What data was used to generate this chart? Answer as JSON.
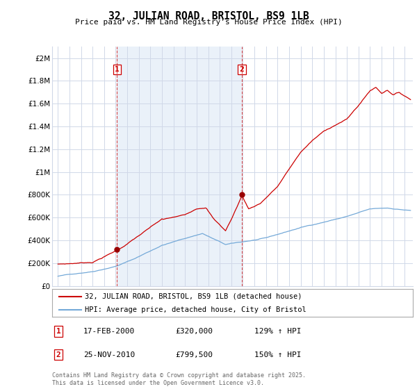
{
  "title": "32, JULIAN ROAD, BRISTOL, BS9 1LB",
  "subtitle": "Price paid vs. HM Land Registry's House Price Index (HPI)",
  "ylabel_ticks": [
    "£0",
    "£200K",
    "£400K",
    "£600K",
    "£800K",
    "£1M",
    "£1.2M",
    "£1.4M",
    "£1.6M",
    "£1.8M",
    "£2M"
  ],
  "ytick_values": [
    0,
    200000,
    400000,
    600000,
    800000,
    1000000,
    1200000,
    1400000,
    1600000,
    1800000,
    2000000
  ],
  "ylim": [
    0,
    2100000
  ],
  "xlim_start": 1994.5,
  "xlim_end": 2025.7,
  "xticks": [
    1995,
    1996,
    1997,
    1998,
    1999,
    2000,
    2001,
    2002,
    2003,
    2004,
    2005,
    2006,
    2007,
    2008,
    2009,
    2010,
    2011,
    2012,
    2013,
    2014,
    2015,
    2016,
    2017,
    2018,
    2019,
    2020,
    2021,
    2022,
    2023,
    2024,
    2025
  ],
  "sale1_x": 2000.12,
  "sale1_y": 320000,
  "sale2_x": 2010.9,
  "sale2_y": 799500,
  "vline1_x": 2000.12,
  "vline2_x": 2010.9,
  "line_red_color": "#cc0000",
  "line_blue_color": "#74a9d8",
  "vline_color": "#cc0000",
  "marker_color": "#990000",
  "grid_color": "#d0d8e8",
  "shade_color": "#dce8f5",
  "background_color": "#ffffff",
  "legend_line1": "32, JULIAN ROAD, BRISTOL, BS9 1LB (detached house)",
  "legend_line2": "HPI: Average price, detached house, City of Bristol",
  "annotation1_label": "1",
  "annotation1_date": "17-FEB-2000",
  "annotation1_price": "£320,000",
  "annotation1_hpi": "129% ↑ HPI",
  "annotation2_label": "2",
  "annotation2_date": "25-NOV-2010",
  "annotation2_price": "£799,500",
  "annotation2_hpi": "150% ↑ HPI",
  "footnote": "Contains HM Land Registry data © Crown copyright and database right 2025.\nThis data is licensed under the Open Government Licence v3.0."
}
